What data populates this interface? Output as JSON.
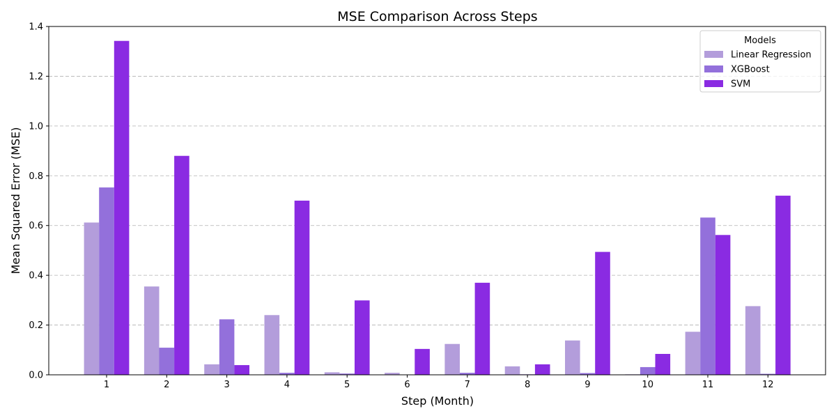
{
  "chart_data": {
    "type": "bar",
    "title": "MSE Comparison Across Steps",
    "xlabel": "Step (Month)",
    "ylabel": "Mean Squared Error (MSE)",
    "categories": [
      "1",
      "2",
      "3",
      "4",
      "5",
      "6",
      "7",
      "8",
      "9",
      "10",
      "11",
      "12"
    ],
    "ylim": [
      0,
      1.4
    ],
    "yticks": [
      "0.0",
      "0.2",
      "0.4",
      "0.6",
      "0.8",
      "1.0",
      "1.2",
      "1.4"
    ],
    "grid": "y-dashed",
    "legend": {
      "title": "Models",
      "placement": "top-right"
    },
    "series": [
      {
        "name": "Linear Regression",
        "color": "#b39ddb",
        "values": [
          0.612,
          0.355,
          0.042,
          0.24,
          0.01,
          0.008,
          0.124,
          0.034,
          0.138,
          0.002,
          0.173,
          0.276
        ]
      },
      {
        "name": "XGBoost",
        "color": "#9370db",
        "values": [
          0.753,
          0.109,
          0.223,
          0.008,
          0.005,
          0.001,
          0.008,
          0.002,
          0.007,
          0.031,
          0.632,
          0.004
        ]
      },
      {
        "name": "SVM",
        "color": "#8a2be2",
        "values": [
          1.342,
          0.88,
          0.039,
          0.7,
          0.299,
          0.104,
          0.37,
          0.042,
          0.494,
          0.084,
          0.562,
          0.72
        ]
      }
    ]
  }
}
